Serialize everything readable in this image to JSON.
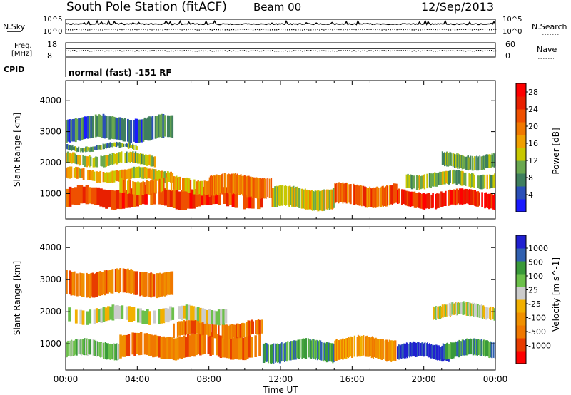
{
  "header": {
    "title": "South Pole Station (fitACF)",
    "beam": "Beam 00",
    "date": "12/Sep/2013"
  },
  "strip": {
    "nsky_label": "N.Sky",
    "nsearch_label": "N.Search",
    "freq_label_1": "Freq.",
    "freq_label_2": "[MHz]",
    "nave_label": "Nave",
    "cpid_label": "CPID",
    "cpid_text": "normal (fast) -151 RF",
    "noise_ticks_left": [
      "10^5",
      "10^0"
    ],
    "noise_ticks_right": [
      "10^5",
      "10^0"
    ],
    "freq_ticks": [
      "18",
      "8"
    ],
    "nave_ticks": [
      "60",
      "0"
    ]
  },
  "colors": {
    "power_scale": [
      "#1a1aff",
      "#2a4fb8",
      "#3f7f5e",
      "#6aa84f",
      "#c8c800",
      "#f0a000",
      "#f07800",
      "#ef5000",
      "#e82000",
      "#ff0000"
    ],
    "velocity_scale": [
      "#ff0000",
      "#e83c00",
      "#f07800",
      "#f09000",
      "#f2b000",
      "#cccccc",
      "#6cc04a",
      "#3a9a3a",
      "#3060b0",
      "#2020d0"
    ]
  },
  "chart_data": [
    {
      "type": "heatmap",
      "name": "Power",
      "ylabel": "Slant Range [km]",
      "xlabel": "Time UT",
      "ylim": [
        180,
        4650
      ],
      "yticks": [
        1000,
        2000,
        3000,
        4000
      ],
      "xticks": [
        "00:00",
        "04:00",
        "08:00",
        "12:00",
        "16:00",
        "20:00",
        "00:00"
      ],
      "colorbar": {
        "label": "Power [dB]",
        "ticks": [
          4,
          8,
          12,
          16,
          20,
          24,
          28
        ],
        "range": [
          0,
          30
        ]
      },
      "bands": [
        {
          "t0": 0,
          "t1": 11,
          "r0": 550,
          "r1": 1200,
          "v": 26
        },
        {
          "t0": 0,
          "t1": 6,
          "r0": 1400,
          "r1": 1800,
          "v": 16
        },
        {
          "t0": 0,
          "t1": 5,
          "r0": 1900,
          "r1": 2300,
          "v": 12
        },
        {
          "t0": 0,
          "t1": 4,
          "r0": 2400,
          "r1": 2600,
          "v": 8
        },
        {
          "t0": 3,
          "t1": 8,
          "r0": 1000,
          "r1": 1500,
          "v": 18
        },
        {
          "t0": 8,
          "t1": 11.5,
          "r0": 900,
          "r1": 1600,
          "v": 20
        },
        {
          "t0": 11.5,
          "t1": 15,
          "r0": 500,
          "r1": 1200,
          "v": 14
        },
        {
          "t0": 15,
          "t1": 18.5,
          "r0": 600,
          "r1": 1300,
          "v": 22
        },
        {
          "t0": 18.5,
          "t1": 24,
          "r0": 550,
          "r1": 1100,
          "v": 28
        },
        {
          "t0": 19,
          "t1": 24,
          "r0": 1200,
          "r1": 1700,
          "v": 12
        },
        {
          "t0": 21,
          "t1": 24,
          "r0": 1800,
          "r1": 2300,
          "v": 10
        },
        {
          "t0": 0,
          "t1": 6,
          "r0": 2700,
          "r1": 3500,
          "v": 6
        }
      ]
    },
    {
      "type": "heatmap",
      "name": "Velocity",
      "ylabel": "Slant Range [km]",
      "xlabel": "Time UT",
      "ylim": [
        180,
        4650
      ],
      "yticks": [
        1000,
        2000,
        3000,
        4000
      ],
      "xticks": [
        "00:00",
        "04:00",
        "08:00",
        "12:00",
        "16:00",
        "20:00",
        "00:00"
      ],
      "colorbar": {
        "label": "Velocity [m s^-1]",
        "ticks": [
          "1000",
          "500",
          "100",
          "25",
          "-25",
          "-100",
          "-500",
          "-1000"
        ]
      },
      "bands": [
        {
          "t0": 0,
          "t1": 3,
          "r0": 550,
          "r1": 1100,
          "v": 6
        },
        {
          "t0": 3,
          "t1": 11,
          "r0": 550,
          "r1": 1300,
          "v": 2
        },
        {
          "t0": 6,
          "t1": 11,
          "r0": 1200,
          "r1": 1700,
          "v": 2
        },
        {
          "t0": 0,
          "t1": 9,
          "r0": 1650,
          "r1": 2150,
          "v": 5
        },
        {
          "t0": 11,
          "t1": 15,
          "r0": 450,
          "r1": 1100,
          "v": 7
        },
        {
          "t0": 15,
          "t1": 18.5,
          "r0": 500,
          "r1": 1200,
          "v": 3
        },
        {
          "t0": 18.5,
          "t1": 21.5,
          "r0": 500,
          "r1": 1000,
          "v": 9
        },
        {
          "t0": 21,
          "t1": 24,
          "r0": 550,
          "r1": 1100,
          "v": 7
        },
        {
          "t0": 20.5,
          "t1": 24,
          "r0": 1800,
          "r1": 2250,
          "v": 5
        },
        {
          "t0": 0,
          "t1": 6,
          "r0": 2500,
          "r1": 3300,
          "v": 2
        }
      ]
    }
  ]
}
